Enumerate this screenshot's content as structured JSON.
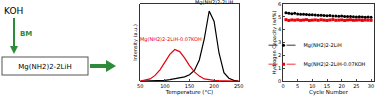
{
  "diagram": {
    "reagent": "KOH",
    "process": "BM",
    "material": "Mg(NH2)2-2LiH"
  },
  "chart_data": [
    {
      "type": "line",
      "x_label": "Temperature (°C)",
      "y_label": "Intensity (a.u.)",
      "x": [
        50,
        60,
        70,
        80,
        90,
        100,
        110,
        120,
        130,
        140,
        150,
        160,
        170,
        180,
        190,
        200,
        210,
        220,
        230,
        240,
        250
      ],
      "series": [
        {
          "name": "Mg(NH2)2-2LiH",
          "color": "#000000",
          "values": [
            0,
            0,
            0,
            0,
            0.5,
            1,
            2,
            3,
            4,
            6,
            9,
            15,
            30,
            60,
            100,
            85,
            40,
            12,
            4,
            1,
            0
          ]
        },
        {
          "name": "Mg(NH2)2-2LiH-0.07KOH",
          "color": "#e8000b",
          "values": [
            0,
            1,
            3,
            8,
            16,
            27,
            38,
            45,
            42,
            33,
            22,
            13,
            7,
            3,
            1.5,
            1,
            0.5,
            0,
            0,
            0,
            0
          ]
        }
      ],
      "annotations": [
        {
          "text": "Mg(NH2)2-2LiH",
          "x": 200,
          "y": 104,
          "color": "#000000"
        },
        {
          "text": "Mg(NH2)2-2LiH-0.07KOH",
          "x": 112,
          "y": 52,
          "color": "#e8000b"
        }
      ],
      "xlim": [
        50,
        250
      ],
      "xticks": [
        50,
        100,
        150,
        200,
        250
      ],
      "ylim": [
        0,
        110
      ],
      "tick_labels": "x"
    },
    {
      "type": "scatter",
      "x_label": "Cycle Number",
      "y_label": "Hydrogen Capacity (wt%)",
      "x": [
        1,
        2,
        3,
        4,
        5,
        6,
        7,
        8,
        9,
        10,
        11,
        12,
        13,
        14,
        15,
        16,
        17,
        18,
        19,
        20,
        21,
        22,
        23,
        24,
        25,
        26,
        27,
        28,
        29,
        30
      ],
      "series": [
        {
          "name": "Mg(NH2)2-2LiH",
          "color": "#000000",
          "marker": "circle",
          "line_style": "dash",
          "values": [
            5.32,
            5.28,
            5.25,
            5.27,
            5.22,
            5.2,
            5.21,
            5.18,
            5.16,
            5.17,
            5.14,
            5.12,
            5.13,
            5.1,
            5.09,
            5.1,
            5.07,
            5.06,
            5.05,
            5.06,
            5.03,
            5.02,
            5.03,
            5.0,
            4.99,
            5.0,
            4.98,
            4.97,
            4.98,
            4.96
          ]
        },
        {
          "name": "Mg(NH2)2-2LiH-0.07KOH",
          "color": "#e8000b",
          "marker": "square",
          "line_style": "dash",
          "values": [
            4.78,
            4.72,
            4.76,
            4.74,
            4.77,
            4.73,
            4.75,
            4.78,
            4.72,
            4.74,
            4.76,
            4.73,
            4.77,
            4.74,
            4.72,
            4.75,
            4.78,
            4.73,
            4.74,
            4.76,
            4.72,
            4.75,
            4.77,
            4.73,
            4.74,
            4.76,
            4.72,
            4.75,
            4.74,
            4.73
          ]
        }
      ],
      "xlim": [
        0,
        31
      ],
      "xticks": [
        0,
        5,
        10,
        15,
        20,
        25,
        30
      ],
      "ylim": [
        0,
        6
      ],
      "yticks": [
        0,
        1,
        2,
        3,
        4,
        5,
        6
      ],
      "legend": "lower right"
    }
  ]
}
